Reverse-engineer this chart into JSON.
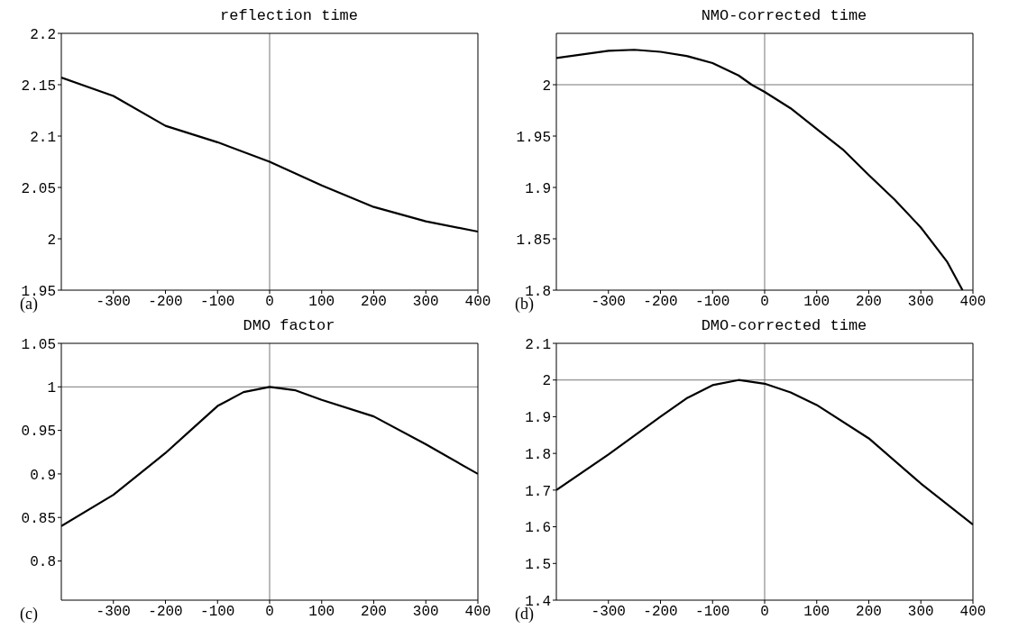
{
  "chart_data": [
    {
      "type": "line",
      "title": "reflection time",
      "x": [
        -400,
        -300,
        -200,
        -100,
        0,
        100,
        200,
        300,
        400
      ],
      "series": [
        {
          "color": "#000000",
          "values": [
            2.157,
            2.139,
            2.11,
            2.094,
            2.075,
            2.052,
            2.031,
            2.017,
            2.007
          ]
        }
      ],
      "xlim": [
        -400,
        400
      ],
      "xticks": [
        -300,
        -200,
        -100,
        0,
        100,
        200,
        300,
        400
      ],
      "ylim": [
        1.95,
        2.2
      ],
      "yticks": [
        1.95,
        2,
        2.05,
        2.1,
        2.15,
        2.2
      ],
      "ref_lines": [
        {
          "axis": "x",
          "value": 0,
          "color": "#777777"
        }
      ],
      "annotations": [
        "(a)"
      ],
      "grid": false,
      "legend": false,
      "marker": "none",
      "line_style": "solid"
    },
    {
      "type": "line",
      "title": "NMO-corrected time",
      "x": [
        -400,
        -300,
        -250,
        -200,
        -150,
        -100,
        -50,
        -25,
        0,
        50,
        100,
        150,
        200,
        250,
        300,
        350,
        380
      ],
      "series": [
        {
          "color": "#000000",
          "values": [
            2.026,
            2.033,
            2.034,
            2.032,
            2.028,
            2.021,
            2.009,
            2.0,
            1.993,
            1.977,
            1.957,
            1.937,
            1.912,
            1.888,
            1.861,
            1.828,
            1.8
          ]
        }
      ],
      "xlim": [
        -400,
        400
      ],
      "xticks": [
        -300,
        -200,
        -100,
        0,
        100,
        200,
        300,
        400
      ],
      "ylim": [
        1.8,
        2.05
      ],
      "yticks": [
        1.8,
        1.85,
        1.9,
        1.95,
        2
      ],
      "ref_lines": [
        {
          "axis": "x",
          "value": 0,
          "color": "#777777"
        },
        {
          "axis": "y",
          "value": 2,
          "color": "#777777"
        }
      ],
      "annotations": [
        "(b)"
      ],
      "grid": false,
      "legend": false,
      "marker": "none",
      "line_style": "solid"
    },
    {
      "type": "line",
      "title": "DMO factor",
      "x": [
        -400,
        -300,
        -200,
        -150,
        -100,
        -50,
        0,
        50,
        100,
        200,
        300,
        400
      ],
      "series": [
        {
          "color": "#000000",
          "values": [
            0.84,
            0.876,
            0.924,
            0.951,
            0.978,
            0.994,
            1.0,
            0.996,
            0.985,
            0.966,
            0.934,
            0.9
          ]
        }
      ],
      "xlim": [
        -400,
        400
      ],
      "xticks": [
        -300,
        -200,
        -100,
        0,
        100,
        200,
        300,
        400
      ],
      "ylim": [
        0.755,
        1.05
      ],
      "yticks": [
        0.8,
        0.85,
        0.9,
        0.95,
        1,
        1.05
      ],
      "ref_lines": [
        {
          "axis": "x",
          "value": 0,
          "color": "#777777"
        },
        {
          "axis": "y",
          "value": 1,
          "color": "#777777"
        }
      ],
      "annotations": [
        "(c)"
      ],
      "grid": false,
      "legend": false,
      "marker": "none",
      "line_style": "solid"
    },
    {
      "type": "line",
      "title": "DMO-corrected time",
      "x": [
        -400,
        -300,
        -200,
        -150,
        -100,
        -50,
        0,
        50,
        100,
        200,
        300,
        400
      ],
      "series": [
        {
          "color": "#000000",
          "values": [
            1.7,
            1.797,
            1.9,
            1.95,
            1.986,
            2.0,
            1.99,
            1.966,
            1.932,
            1.841,
            1.718,
            1.606
          ]
        }
      ],
      "xlim": [
        -400,
        400
      ],
      "xticks": [
        -300,
        -200,
        -100,
        0,
        100,
        200,
        300,
        400
      ],
      "ylim": [
        1.4,
        2.1
      ],
      "yticks": [
        1.4,
        1.5,
        1.6,
        1.7,
        1.8,
        1.9,
        2,
        2.1
      ],
      "ref_lines": [
        {
          "axis": "x",
          "value": 0,
          "color": "#777777"
        },
        {
          "axis": "y",
          "value": 2,
          "color": "#777777"
        }
      ],
      "annotations": [
        "(d)"
      ],
      "grid": false,
      "legend": false,
      "marker": "none",
      "line_style": "solid"
    }
  ]
}
